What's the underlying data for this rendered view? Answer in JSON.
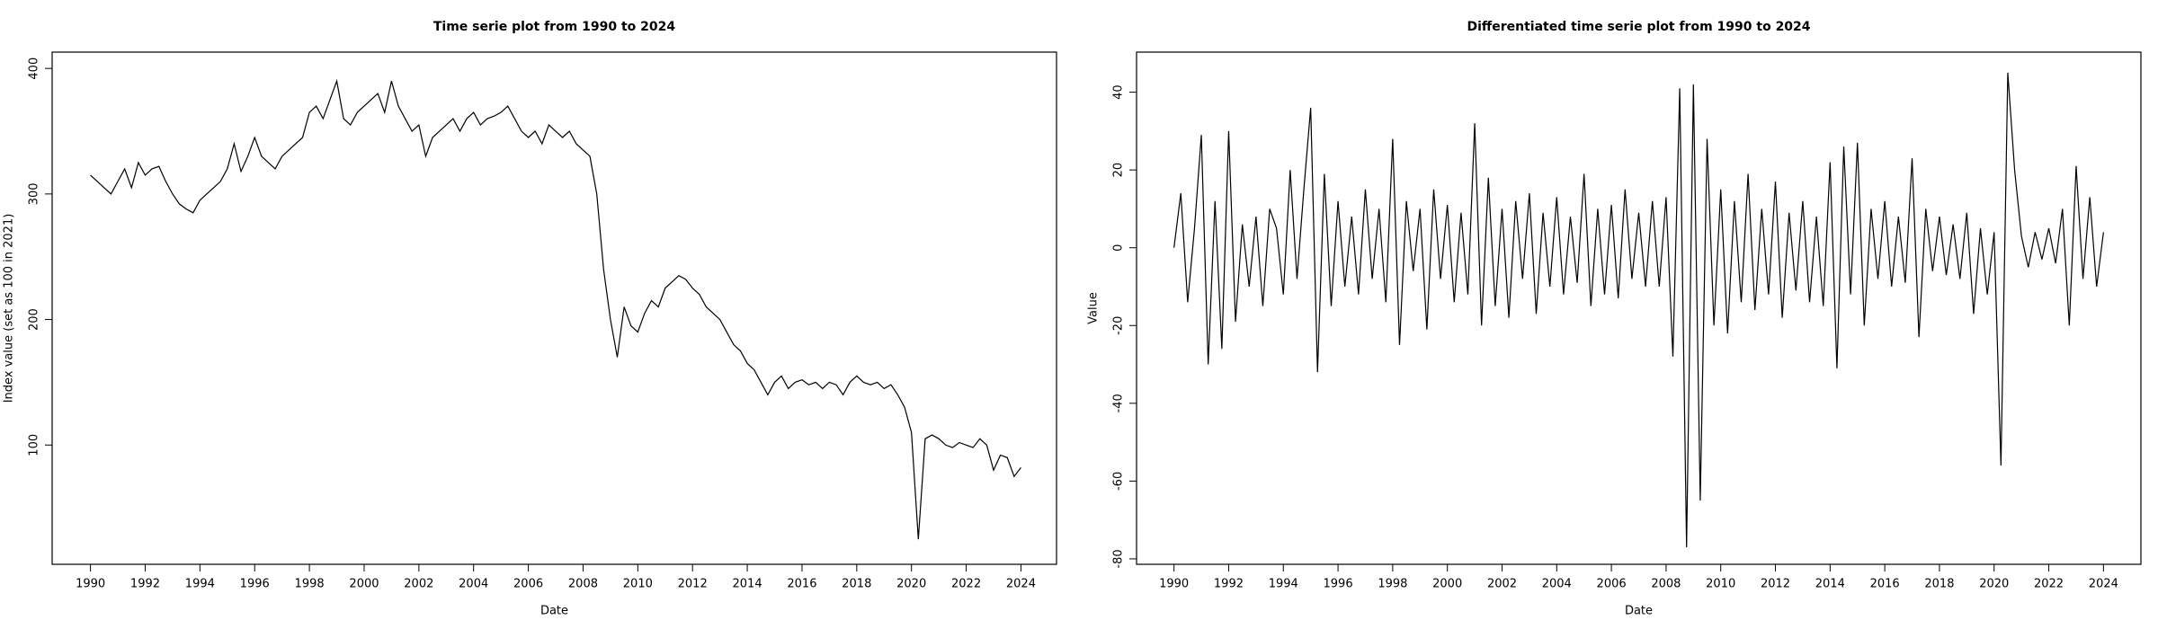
{
  "chart_data": [
    {
      "type": "line",
      "title": "Time serie plot from 1990 to 2024",
      "x_label": "Date",
      "y_label": "Index value (set as 100 in 2021)",
      "x": [
        1990,
        1990.25,
        1990.5,
        1990.75,
        1991,
        1991.25,
        1991.5,
        1991.75,
        1992,
        1992.25,
        1992.5,
        1992.75,
        1993,
        1993.25,
        1993.5,
        1993.75,
        1994,
        1994.25,
        1994.5,
        1994.75,
        1995,
        1995.25,
        1995.5,
        1995.75,
        1996,
        1996.25,
        1996.5,
        1996.75,
        1997,
        1997.25,
        1997.5,
        1997.75,
        1998,
        1998.25,
        1998.5,
        1998.75,
        1999,
        1999.25,
        1999.5,
        1999.75,
        2000,
        2000.25,
        2000.5,
        2000.75,
        2001,
        2001.25,
        2001.5,
        2001.75,
        2002,
        2002.25,
        2002.5,
        2002.75,
        2003,
        2003.25,
        2003.5,
        2003.75,
        2004,
        2004.25,
        2004.5,
        2004.75,
        2005,
        2005.25,
        2005.5,
        2005.75,
        2006,
        2006.25,
        2006.5,
        2006.75,
        2007,
        2007.25,
        2007.5,
        2007.75,
        2008,
        2008.25,
        2008.5,
        2008.75,
        2009,
        2009.25,
        2009.5,
        2009.75,
        2010,
        2010.25,
        2010.5,
        2010.75,
        2011,
        2011.25,
        2011.5,
        2011.75,
        2012,
        2012.25,
        2012.5,
        2012.75,
        2013,
        2013.25,
        2013.5,
        2013.75,
        2014,
        2014.25,
        2014.5,
        2014.75,
        2015,
        2015.25,
        2015.5,
        2015.75,
        2016,
        2016.25,
        2016.5,
        2016.75,
        2017,
        2017.25,
        2017.5,
        2017.75,
        2018,
        2018.25,
        2018.5,
        2018.75,
        2019,
        2019.25,
        2019.5,
        2019.75,
        2020,
        2020.25,
        2020.5,
        2020.75,
        2021,
        2021.25,
        2021.5,
        2021.75,
        2022,
        2022.25,
        2022.5,
        2022.75,
        2023,
        2023.25,
        2023.5,
        2023.75,
        2024
      ],
      "values": [
        315,
        310,
        305,
        300,
        310,
        320,
        305,
        325,
        315,
        320,
        322,
        310,
        300,
        292,
        288,
        285,
        295,
        300,
        305,
        310,
        320,
        340,
        318,
        330,
        345,
        330,
        325,
        320,
        330,
        335,
        340,
        345,
        365,
        370,
        360,
        375,
        390,
        360,
        355,
        365,
        370,
        375,
        380,
        365,
        390,
        370,
        360,
        350,
        355,
        330,
        345,
        350,
        355,
        360,
        350,
        360,
        365,
        355,
        360,
        362,
        365,
        370,
        360,
        350,
        345,
        350,
        340,
        355,
        350,
        345,
        350,
        340,
        335,
        330,
        300,
        240,
        200,
        170,
        210,
        195,
        190,
        205,
        215,
        210,
        225,
        230,
        235,
        232,
        225,
        220,
        210,
        205,
        200,
        190,
        180,
        175,
        165,
        160,
        150,
        140,
        150,
        155,
        145,
        150,
        152,
        148,
        150,
        145,
        150,
        148,
        140,
        150,
        155,
        150,
        148,
        150,
        145,
        148,
        140,
        130,
        110,
        25,
        105,
        108,
        105,
        100,
        98,
        102,
        100,
        98,
        105,
        100,
        80,
        92,
        90,
        75,
        82
      ],
      "color": "#000000",
      "xlim": [
        1988.6,
        2025.3
      ],
      "xticks": [
        1990,
        1992,
        1994,
        1996,
        1998,
        2000,
        2002,
        2004,
        2006,
        2008,
        2010,
        2012,
        2014,
        2016,
        2018,
        2020,
        2022,
        2024
      ],
      "ylim": [
        5,
        413
      ],
      "yticks": [
        100,
        200,
        300,
        400
      ]
    },
    {
      "type": "line",
      "title": "Differentiated time serie plot from 1990 to 2024",
      "x_label": "Date",
      "y_label": "Value",
      "x": [
        1990,
        1990.25,
        1990.5,
        1990.75,
        1991,
        1991.25,
        1991.5,
        1991.75,
        1992,
        1992.25,
        1992.5,
        1992.75,
        1993,
        1993.25,
        1993.5,
        1993.75,
        1994,
        1994.25,
        1994.5,
        1994.75,
        1995,
        1995.25,
        1995.5,
        1995.75,
        1996,
        1996.25,
        1996.5,
        1996.75,
        1997,
        1997.25,
        1997.5,
        1997.75,
        1998,
        1998.25,
        1998.5,
        1998.75,
        1999,
        1999.25,
        1999.5,
        1999.75,
        2000,
        2000.25,
        2000.5,
        2000.75,
        2001,
        2001.25,
        2001.5,
        2001.75,
        2002,
        2002.25,
        2002.5,
        2002.75,
        2003,
        2003.25,
        2003.5,
        2003.75,
        2004,
        2004.25,
        2004.5,
        2004.75,
        2005,
        2005.25,
        2005.5,
        2005.75,
        2006,
        2006.25,
        2006.5,
        2006.75,
        2007,
        2007.25,
        2007.5,
        2007.75,
        2008,
        2008.25,
        2008.5,
        2008.75,
        2009,
        2009.25,
        2009.5,
        2009.75,
        2010,
        2010.25,
        2010.5,
        2010.75,
        2011,
        2011.25,
        2011.5,
        2011.75,
        2012,
        2012.25,
        2012.5,
        2012.75,
        2013,
        2013.25,
        2013.5,
        2013.75,
        2014,
        2014.25,
        2014.5,
        2014.75,
        2015,
        2015.25,
        2015.5,
        2015.75,
        2016,
        2016.25,
        2016.5,
        2016.75,
        2017,
        2017.25,
        2017.5,
        2017.75,
        2018,
        2018.25,
        2018.5,
        2018.75,
        2019,
        2019.25,
        2019.5,
        2019.75,
        2020,
        2020.25,
        2020.5,
        2020.75,
        2021,
        2021.25,
        2021.5,
        2021.75,
        2022,
        2022.25,
        2022.5,
        2022.75,
        2023,
        2023.25,
        2023.5,
        2023.75,
        2024
      ],
      "values": [
        0,
        14,
        -14,
        5,
        29,
        -30,
        12,
        -26,
        30,
        -19,
        6,
        -10,
        8,
        -15,
        10,
        5,
        -12,
        20,
        -8,
        15,
        36,
        -32,
        19,
        -15,
        12,
        -10,
        8,
        -12,
        15,
        -8,
        10,
        -14,
        28,
        -25,
        12,
        -6,
        10,
        -21,
        15,
        -8,
        11,
        -14,
        9,
        -12,
        32,
        -20,
        18,
        -15,
        10,
        -18,
        12,
        -8,
        14,
        -17,
        9,
        -10,
        13,
        -12,
        8,
        -9,
        19,
        -15,
        10,
        -12,
        11,
        -13,
        15,
        -8,
        9,
        -10,
        12,
        -10,
        13,
        -28,
        41,
        -77,
        42,
        -65,
        28,
        -20,
        15,
        -22,
        12,
        -14,
        19,
        -16,
        10,
        -12,
        17,
        -18,
        9,
        -11,
        12,
        -14,
        8,
        -15,
        22,
        -31,
        26,
        -12,
        27,
        -20,
        10,
        -8,
        12,
        -10,
        8,
        -9,
        23,
        -23,
        10,
        -6,
        8,
        -7,
        6,
        -8,
        9,
        -17,
        5,
        -12,
        4,
        -56,
        45,
        20,
        3,
        -5,
        4,
        -3,
        5,
        -4,
        10,
        -20,
        21,
        -8,
        13,
        -10,
        4
      ],
      "color": "#000000",
      "xlim": [
        1988.63,
        2025.37
      ],
      "xticks": [
        1990,
        1992,
        1994,
        1996,
        1998,
        2000,
        2002,
        2004,
        2006,
        2008,
        2010,
        2012,
        2014,
        2016,
        2018,
        2020,
        2022,
        2024
      ],
      "ylim": [
        -81.4,
        50.3
      ],
      "yticks": [
        -80,
        -60,
        -40,
        -20,
        0,
        20,
        40
      ]
    }
  ]
}
